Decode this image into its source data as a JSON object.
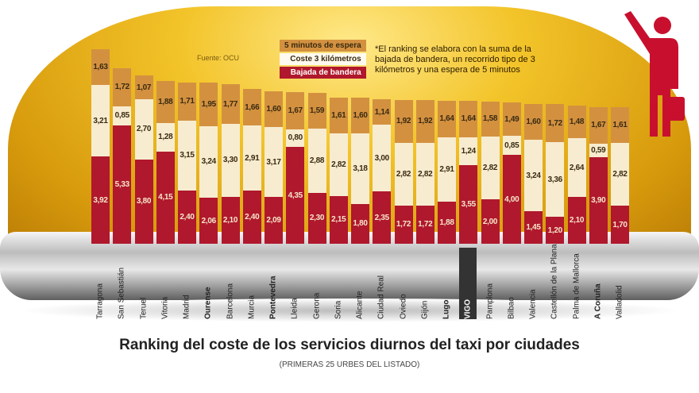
{
  "chart_data": {
    "type": "bar",
    "stacked": true,
    "title": "Ranking del coste de los servicios diurnos del taxi por ciudades",
    "subtitle": "(PRIMERAS 25 URBES DEL LISTADO)",
    "source": "Fuente: OCU",
    "note": "*El ranking se elabora con la suma de la bajada de bandera, un recorrido tipo de 3 kilómetros y una espera de 5 minutos",
    "categories": [
      "Tarragona",
      "San Sebastián",
      "Teruel",
      "Vitoria",
      "Madrid",
      "Ourense",
      "Barcelona",
      "Murcia",
      "Pontevedra",
      "Lleida",
      "Gerona",
      "Soria",
      "Alicante",
      "Ciudad Real",
      "Oviedo",
      "Gijón",
      "Lugo",
      "VIGO",
      "Pamplona",
      "Bilbao",
      "Valencia",
      "Castellón de la Plana",
      "Palma de Mallorca",
      "A Coruña",
      "Valladolid"
    ],
    "bold_categories": [
      "Ourense",
      "Pontevedra",
      "Lugo",
      "VIGO",
      "A Coruña"
    ],
    "highlight_category": "VIGO",
    "series": [
      {
        "name": "Bajada de bandera",
        "color": "#b0182d",
        "values": [
          3.92,
          5.33,
          3.8,
          4.15,
          2.4,
          2.06,
          2.1,
          2.4,
          2.09,
          4.35,
          2.3,
          2.15,
          1.8,
          2.35,
          1.72,
          1.72,
          1.88,
          3.55,
          2.0,
          4.0,
          1.45,
          1.2,
          2.1,
          3.9,
          1.7
        ]
      },
      {
        "name": "Coste 3 kilómetros",
        "color": "#f7ecd0",
        "values": [
          3.21,
          0.85,
          2.7,
          1.28,
          3.15,
          3.24,
          3.3,
          2.91,
          3.17,
          0.8,
          2.88,
          2.82,
          3.18,
          3.0,
          2.82,
          2.82,
          2.91,
          1.24,
          2.82,
          0.85,
          3.24,
          3.36,
          2.64,
          0.59,
          2.82
        ]
      },
      {
        "name": "5 minutos de espera",
        "color": "#d39140",
        "values": [
          1.63,
          1.72,
          1.07,
          1.88,
          1.71,
          1.95,
          1.77,
          1.66,
          1.6,
          1.67,
          1.59,
          1.61,
          1.6,
          1.14,
          1.92,
          1.92,
          1.64,
          1.64,
          1.58,
          1.49,
          1.6,
          1.72,
          1.48,
          1.67,
          1.61
        ]
      }
    ],
    "legend": [
      "5 minutos de espera",
      "Coste 3 kilómetros",
      "Bajada de bandera"
    ],
    "legend_placement": "top-center"
  }
}
